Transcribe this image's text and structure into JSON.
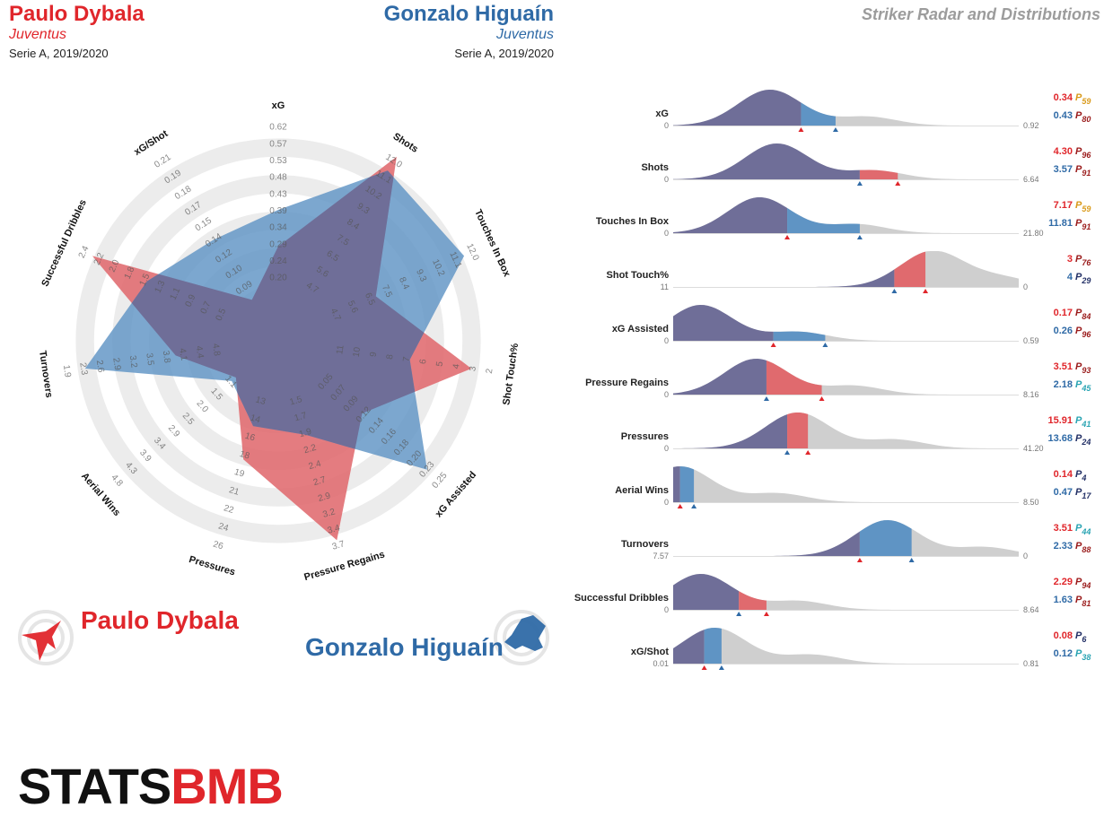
{
  "header": {
    "player1": {
      "name": "Paulo Dybala",
      "team": "Juventus",
      "competition": "Serie A, 2019/2020"
    },
    "player2": {
      "name": "Gonzalo Higuaín",
      "team": "Juventus",
      "competition": "Serie A, 2019/2020"
    },
    "title": "Striker Radar and Distributions"
  },
  "legend": {
    "player1": "Paulo Dybala",
    "player2": "Gonzalo Higuaín"
  },
  "logo": {
    "text_part1": "STATS",
    "text_part2": "BMB"
  },
  "colors": {
    "player1": "#e06a6e",
    "player2": "#5f94c4",
    "overlap": "#6f6e98",
    "background_fill": "#cfcfcf",
    "player1_text": "#e0262b",
    "player2_text": "#2f6aa6"
  },
  "chart_data": [
    {
      "type": "radar",
      "axes": [
        {
          "label": "xG",
          "ticks": [
            "0.20",
            "0.24",
            "0.29",
            "0.34",
            "0.39",
            "0.43",
            "0.48",
            "0.53",
            "0.57",
            "0.62"
          ],
          "player1_level": 0.31,
          "player2_level": 0.51
        },
        {
          "label": "Shots",
          "ticks": [
            "4.7",
            "5.6",
            "6.5",
            "7.5",
            "8.4",
            "9.3",
            "10.2",
            "11.1",
            "12.0"
          ],
          "player1_level": 0.99,
          "player2_level": 0.9
        },
        {
          "label": "Touches In Box",
          "ticks": [
            "4.7",
            "5.6",
            "6.5",
            "7.5",
            "8.4",
            "9.3",
            "10.2",
            "11.1",
            "12.0"
          ],
          "player1_level": 0.38,
          "player2_level": 0.91
        },
        {
          "label": "Shot Touch%",
          "ticks": [
            "11",
            "10",
            "9",
            "8",
            "7",
            "6",
            "5",
            "4",
            "3",
            "2"
          ],
          "player1_level": 0.86,
          "player2_level": 0.52
        },
        {
          "label": "xG Assisted",
          "ticks": [
            "0.05",
            "0.07",
            "0.09",
            "0.12",
            "0.14",
            "0.16",
            "0.18",
            "0.20",
            "0.23",
            "0.25"
          ],
          "player1_level": 0.4,
          "player2_level": 0.87
        },
        {
          "label": "Pressure Regains",
          "ticks": [
            "1.5",
            "1.7",
            "1.9",
            "2.2",
            "2.4",
            "2.7",
            "2.9",
            "3.2",
            "3.4",
            "3.7"
          ],
          "player1_level": 0.93,
          "player2_level": 0.33
        },
        {
          "label": "Pressures",
          "ticks": [
            "13",
            "14",
            "16",
            "18",
            "19",
            "21",
            "22",
            "24",
            "26"
          ],
          "player1_level": 0.47,
          "player2_level": 0.28
        },
        {
          "label": "Aerial Wins",
          "ticks": [
            "1.1",
            "1.5",
            "2.0",
            "2.5",
            "2.9",
            "3.4",
            "3.9",
            "4.3",
            "4.8"
          ],
          "player1_level": 0.1,
          "player2_level": 0.13
        },
        {
          "label": "Turnovers",
          "ticks": [
            "4.8",
            "4.4",
            "4.1",
            "3.8",
            "3.5",
            "3.2",
            "2.9",
            "2.6",
            "2.3",
            "1.9"
          ],
          "player1_level": 0.36,
          "player2_level": 0.86
        },
        {
          "label": "Successful Dribbles",
          "ticks": [
            "0.5",
            "0.7",
            "0.9",
            "1.1",
            "1.3",
            "1.5",
            "1.8",
            "2.0",
            "2.2",
            "2.4"
          ],
          "player1_level": 0.91,
          "player2_level": 0.58
        },
        {
          "label": "xG/Shot",
          "ticks": [
            "0.09",
            "0.10",
            "0.12",
            "0.14",
            "0.15",
            "0.17",
            "0.18",
            "0.19",
            "0.21"
          ],
          "player1_level": 0.06,
          "player2_level": 0.45
        }
      ]
    },
    {
      "type": "area",
      "series": [
        {
          "name": "Paulo Dybala"
        },
        {
          "name": "Gonzalo Higuaín"
        }
      ],
      "metrics": [
        {
          "label": "xG",
          "min": "0",
          "max": "0.92",
          "p1_value": "0.34",
          "p1_pct": "59",
          "p2_value": "0.43",
          "p2_pct": "80",
          "p1_frac": 0.37,
          "p2_frac": 0.47,
          "peak_frac": 0.28
        },
        {
          "label": "Shots",
          "min": "0",
          "max": "6.64",
          "p1_value": "4.30",
          "p1_pct": "96",
          "p2_value": "3.57",
          "p2_pct": "91",
          "p1_frac": 0.65,
          "p2_frac": 0.54,
          "peak_frac": 0.3
        },
        {
          "label": "Touches In Box",
          "min": "0",
          "max": "21.80",
          "p1_value": "7.17",
          "p1_pct": "59",
          "p2_value": "11.81",
          "p2_pct": "91",
          "p1_frac": 0.33,
          "p2_frac": 0.54,
          "peak_frac": 0.25
        },
        {
          "label": "Shot Touch%",
          "min": "11",
          "max": "0",
          "p1_value": "3",
          "p1_pct": "76",
          "p2_value": "4",
          "p2_pct": "29",
          "p1_frac": 0.73,
          "p2_frac": 0.64,
          "peak_frac": 0.75
        },
        {
          "label": "xG Assisted",
          "min": "0",
          "max": "0.59",
          "p1_value": "0.17",
          "p1_pct": "84",
          "p2_value": "0.26",
          "p2_pct": "96",
          "p1_frac": 0.29,
          "p2_frac": 0.44,
          "peak_frac": 0.08
        },
        {
          "label": "Pressure Regains",
          "min": "0",
          "max": "8.16",
          "p1_value": "3.51",
          "p1_pct": "93",
          "p2_value": "2.18",
          "p2_pct": "45",
          "p1_frac": 0.43,
          "p2_frac": 0.27,
          "peak_frac": 0.24
        },
        {
          "label": "Pressures",
          "min": "0",
          "max": "41.20",
          "p1_value": "15.91",
          "p1_pct": "41",
          "p2_value": "13.68",
          "p2_pct": "24",
          "p1_frac": 0.39,
          "p2_frac": 0.33,
          "peak_frac": 0.36
        },
        {
          "label": "Aerial Wins",
          "min": "0",
          "max": "8.50",
          "p1_value": "0.14",
          "p1_pct": "4",
          "p2_value": "0.47",
          "p2_pct": "17",
          "p1_frac": 0.02,
          "p2_frac": 0.06,
          "peak_frac": 0.02
        },
        {
          "label": "Turnovers",
          "min": "7.57",
          "max": "0",
          "p1_value": "3.51",
          "p1_pct": "44",
          "p2_value": "2.33",
          "p2_pct": "88",
          "p1_frac": 0.54,
          "p2_frac": 0.69,
          "peak_frac": 0.62
        },
        {
          "label": "Successful Dribbles",
          "min": "0",
          "max": "8.64",
          "p1_value": "2.29",
          "p1_pct": "94",
          "p2_value": "1.63",
          "p2_pct": "81",
          "p1_frac": 0.27,
          "p2_frac": 0.19,
          "peak_frac": 0.08
        },
        {
          "label": "xG/Shot",
          "min": "0.01",
          "max": "0.81",
          "p1_value": "0.08",
          "p1_pct": "6",
          "p2_value": "0.12",
          "p2_pct": "38",
          "p1_frac": 0.09,
          "p2_frac": 0.14,
          "peak_frac": 0.12
        }
      ]
    }
  ]
}
